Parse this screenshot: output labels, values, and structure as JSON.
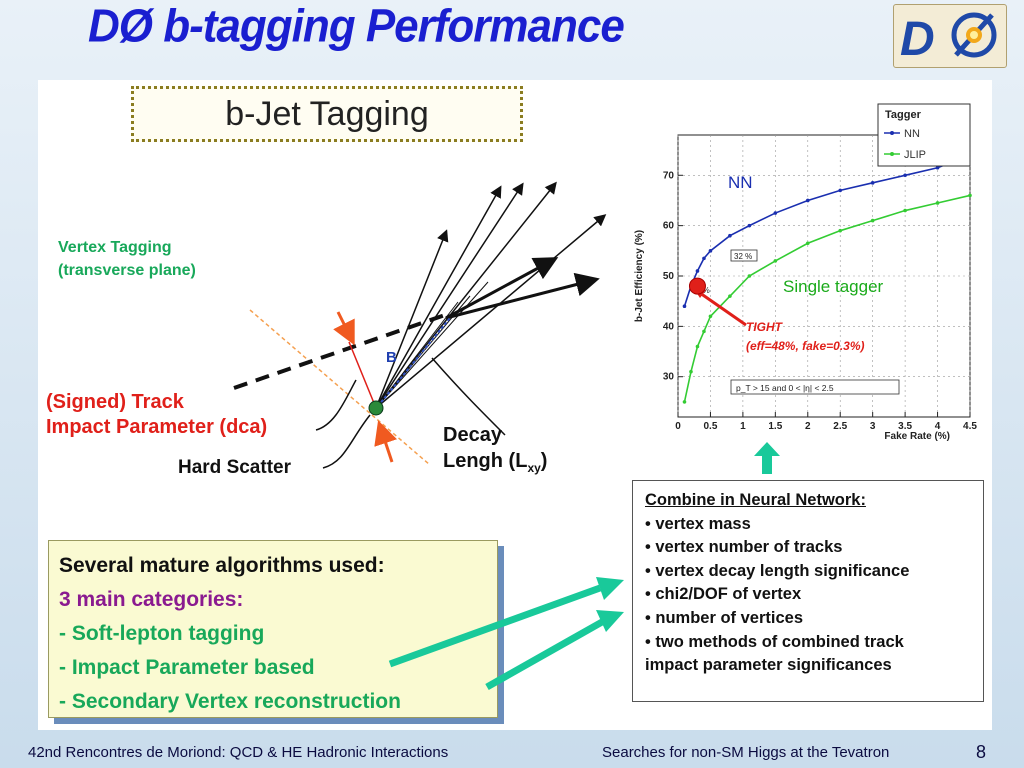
{
  "slide": {
    "title": "DØ b-tagging Performance",
    "footer_left": "42nd Rencontres de Moriond: QCD & HE Hadronic Interactions",
    "footer_right": "Searches for non-SM Higgs at the Tevatron",
    "page_number": "8"
  },
  "diagram": {
    "heading": "b-Jet Tagging",
    "vertex_tagging_line1": "Vertex Tagging",
    "vertex_tagging_line2": "(transverse plane)",
    "signed_track_line1": "(Signed) Track",
    "signed_track_line2": "Impact Parameter (dca)",
    "hard_scatter": "Hard Scatter",
    "decay_line1": "Decay",
    "decay_line2": "Lengh (L",
    "decay_sub": "xy",
    "decay_close": ")",
    "b_label": "B"
  },
  "algorithms": {
    "heading": "Several mature algorithms used:",
    "subheading": "3 main categories:",
    "items": [
      "- Soft-lepton tagging",
      "- Impact Parameter based",
      "- Secondary Vertex reconstruction"
    ]
  },
  "neural_net": {
    "heading": "Combine in Neural Network:",
    "items": [
      "• vertex mass",
      "• vertex number of tracks",
      "• vertex decay length significance",
      "• chi2/DOF of vertex",
      "• number of vertices",
      "• two methods of combined track",
      "impact parameter significances"
    ]
  },
  "chart_annotations": {
    "nn": "NN",
    "single_tagger": "Single tagger",
    "tight_line1": "TIGHT",
    "tight_line2": "(eff=48%, fake=0.3%)"
  },
  "chart_data": {
    "type": "line",
    "xlabel": "Fake Rate (%)",
    "ylabel": "b-Jet Efficiency (%)",
    "xlim": [
      0,
      4.5
    ],
    "ylim": [
      22,
      78
    ],
    "x_ticks": [
      "0",
      "0.5",
      "1",
      "1.5",
      "2",
      "2.5",
      "3",
      "3.5",
      "4",
      "4.5"
    ],
    "y_ticks": [
      "30",
      "40",
      "50",
      "60",
      "70"
    ],
    "legend_title": "Tagger",
    "legend_position": "top-right",
    "cut_label": "p_T > 15 and 0 < |η| < 2.5",
    "op_labels": [
      "32 %",
      "3 %"
    ],
    "series": [
      {
        "name": "NN",
        "color": "#1a2fb0",
        "x": [
          0.1,
          0.2,
          0.3,
          0.4,
          0.5,
          0.8,
          1.1,
          1.5,
          2.0,
          2.5,
          3.0,
          3.5,
          4.0,
          4.2
        ],
        "y": [
          44,
          48,
          51,
          53.5,
          55,
          58,
          60,
          62.5,
          65,
          67,
          68.5,
          70,
          71.5,
          72.5
        ]
      },
      {
        "name": "JLIP",
        "color": "#33cc33",
        "x": [
          0.1,
          0.2,
          0.3,
          0.4,
          0.5,
          0.8,
          1.1,
          1.5,
          2.0,
          2.5,
          3.0,
          3.5,
          4.0,
          4.5
        ],
        "y": [
          25,
          31,
          36,
          39,
          42,
          46,
          50,
          53,
          56.5,
          59,
          61,
          63,
          64.5,
          66
        ]
      }
    ],
    "highlight_point": {
      "x": 0.3,
      "y": 48,
      "label": "TIGHT"
    }
  },
  "colors": {
    "title": "#1a1fd0",
    "green_text": "#18a85a",
    "red_text": "#e0201a",
    "purple_text": "#8a1a90",
    "arrow_teal": "#19c99a"
  }
}
